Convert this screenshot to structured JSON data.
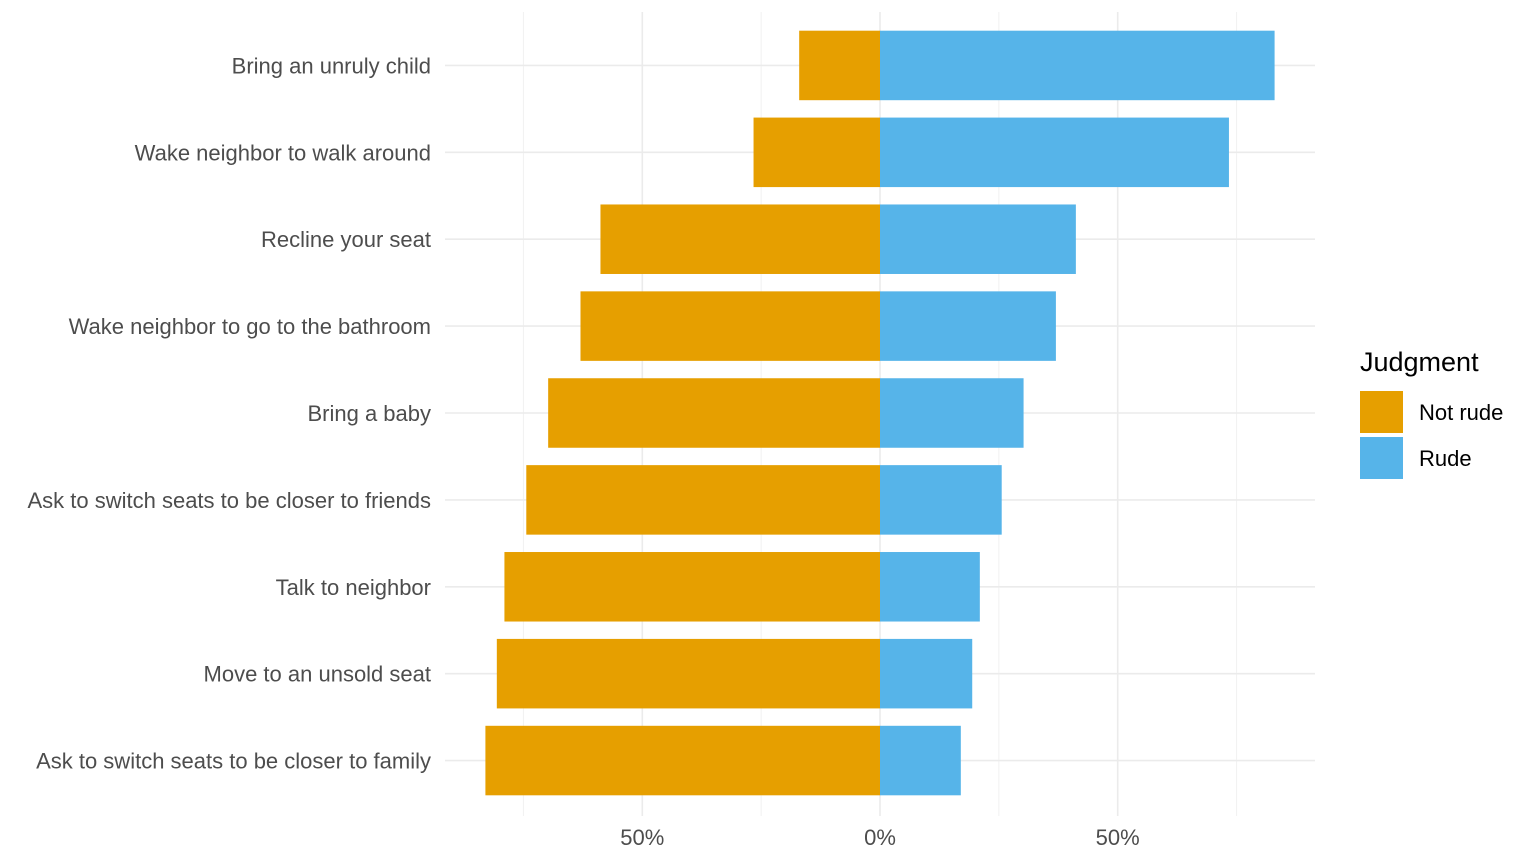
{
  "chart_data": {
    "type": "bar",
    "orientation": "horizontal",
    "stacking": "diverging",
    "categories": [
      "Bring an unruly child",
      "Wake neighbor to walk around",
      "Recline your seat",
      "Wake neighbor to go to the bathroom",
      "Bring a baby",
      "Ask to switch seats to be closer to friends",
      "Talk to neighbor",
      "Move to an unsold seat",
      "Ask to switch seats to be closer to family"
    ],
    "series": [
      {
        "name": "Not rude",
        "color": "#E69F00",
        "direction": "left",
        "values": [
          17,
          26.6,
          58.8,
          63,
          69.8,
          74.4,
          79,
          80.6,
          83
        ]
      },
      {
        "name": "Rude",
        "color": "#56B4E9",
        "direction": "right",
        "values": [
          83,
          73.4,
          41.2,
          37,
          30.2,
          25.6,
          21,
          19.4,
          17
        ]
      }
    ],
    "xlim": [
      -91.5,
      91.5
    ],
    "x_ticks": [
      {
        "value": -50,
        "label": "50%"
      },
      {
        "value": 0,
        "label": "0%"
      },
      {
        "value": 50,
        "label": "50%"
      }
    ],
    "x_minor_ticks": [
      -75,
      -25,
      25,
      75
    ],
    "grid": true,
    "legend": {
      "title": "Judgment",
      "position": "right",
      "entries": [
        "Not rude",
        "Rude"
      ]
    }
  }
}
